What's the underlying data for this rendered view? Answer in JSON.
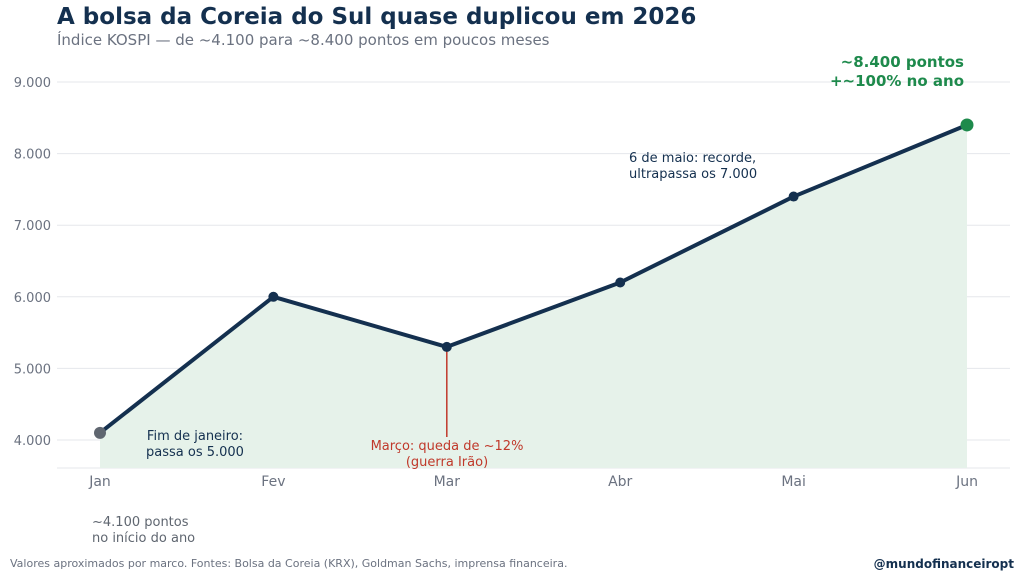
{
  "title": "A bolsa da Coreia do Sul quase duplicou em 2026",
  "subtitle": "Índice KOSPI — de ~4.100 para ~8.400 pontos em poucos meses",
  "chart_data": {
    "type": "line",
    "categories": [
      "Jan",
      "Fev",
      "Mar",
      "Abr",
      "Mai",
      "Jun"
    ],
    "values": [
      4100,
      6000,
      5300,
      6200,
      7400,
      8400
    ],
    "ylim": [
      3600,
      9300
    ],
    "yticks": [
      4000,
      5000,
      6000,
      7000,
      8000,
      9000
    ],
    "ytick_labels": [
      "4.000",
      "5.000",
      "6.000",
      "7.000",
      "8.000",
      "9.000"
    ],
    "grid": true,
    "annotations": {
      "start": [
        "~4.100 pontos",
        "no início do ano"
      ],
      "jan_end": [
        "Fim de janeiro:",
        "passa os 5.000"
      ],
      "march": [
        "Março: queda de ~12%",
        "(guerra Irão)"
      ],
      "may": [
        "6 de maio: recorde,",
        "ultrapassa os 7.000"
      ],
      "end": [
        "~8.400 pontos",
        "+~100% no ano"
      ]
    },
    "colors": {
      "line": "#14304f",
      "fill": "#e6f2ea",
      "start_point": "#5f6670",
      "end_point": "#1e8a4c",
      "drop": "#c0392b",
      "grid": "#e5e7eb",
      "tick_text": "#6b7280"
    }
  },
  "footer": {
    "source": "Valores aproximados por marco.  Fontes: Bolsa da Coreia (KRX), Goldman Sachs, imprensa financeira.",
    "handle": "@mundofinanceiropt"
  }
}
